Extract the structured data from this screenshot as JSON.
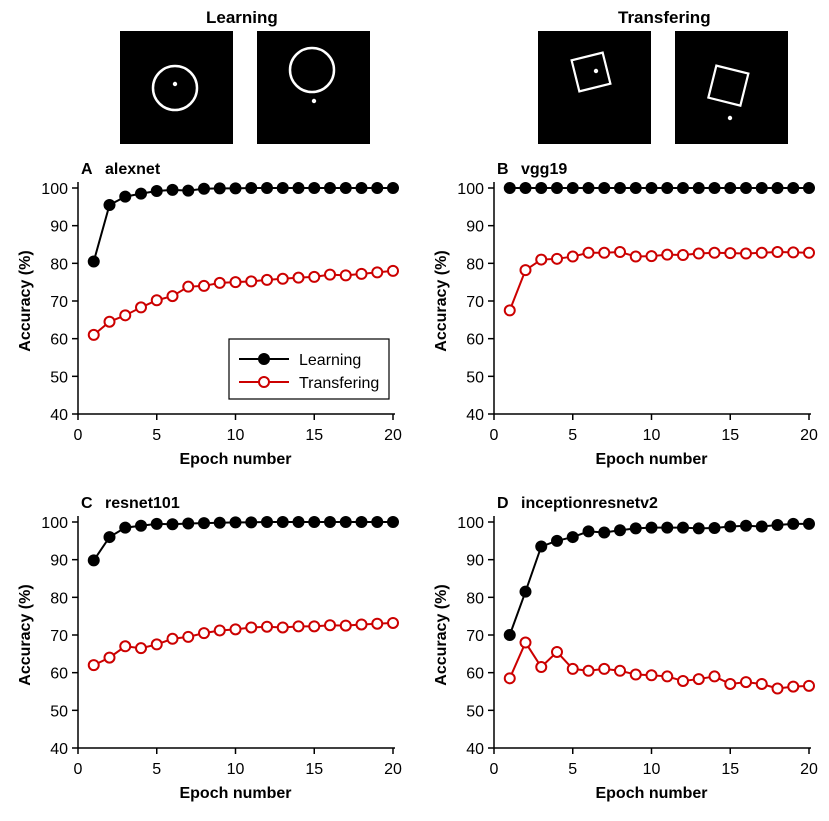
{
  "header": {
    "learning_label": "Learning",
    "transfer_label": "Transfering"
  },
  "stimuli": {
    "learning": [
      {
        "shape": "circle",
        "dot": "center"
      },
      {
        "shape": "circle",
        "dot": "outside-below"
      }
    ],
    "transfer": [
      {
        "shape": "square",
        "dot": "center"
      },
      {
        "shape": "square",
        "dot": "outside-below"
      }
    ]
  },
  "colors": {
    "learning": "#000000",
    "transfering": "#cc0000"
  },
  "legend": {
    "learning": "Learning",
    "transfering": "Transfering",
    "placement": "panel-A-bottom-right"
  },
  "chart_data": [
    {
      "type": "line",
      "panel": "A",
      "title": "alexnet",
      "xlabel": "Epoch number",
      "ylabel": "Accuracy (%)",
      "xlim": [
        0,
        20
      ],
      "ylim": [
        40,
        100
      ],
      "xticks": [
        0,
        5,
        10,
        15,
        20
      ],
      "yticks": [
        40,
        50,
        60,
        70,
        80,
        90,
        100
      ],
      "x": [
        1,
        2,
        3,
        4,
        5,
        6,
        7,
        8,
        9,
        10,
        11,
        12,
        13,
        14,
        15,
        16,
        17,
        18,
        19,
        20
      ],
      "series": [
        {
          "name": "Learning",
          "values": [
            80.5,
            95.5,
            97.7,
            98.5,
            99.2,
            99.5,
            99.3,
            99.8,
            99.9,
            99.9,
            100,
            100,
            100,
            100,
            100,
            100,
            100,
            100,
            100,
            100
          ]
        },
        {
          "name": "Transfering",
          "values": [
            61,
            64.5,
            66.2,
            68.3,
            70.2,
            71.3,
            73.8,
            74,
            74.8,
            75,
            75.2,
            75.6,
            75.9,
            76.2,
            76.4,
            77,
            76.8,
            77.2,
            77.6,
            78
          ]
        }
      ]
    },
    {
      "type": "line",
      "panel": "B",
      "title": "vgg19",
      "xlabel": "Epoch number",
      "ylabel": "Accuracy (%)",
      "xlim": [
        0,
        20
      ],
      "ylim": [
        40,
        100
      ],
      "xticks": [
        0,
        5,
        10,
        15,
        20
      ],
      "yticks": [
        40,
        50,
        60,
        70,
        80,
        90,
        100
      ],
      "x": [
        1,
        2,
        3,
        4,
        5,
        6,
        7,
        8,
        9,
        10,
        11,
        12,
        13,
        14,
        15,
        16,
        17,
        18,
        19,
        20
      ],
      "series": [
        {
          "name": "Learning",
          "values": [
            100,
            100,
            100,
            100,
            100,
            100,
            100,
            100,
            100,
            100,
            100,
            100,
            100,
            100,
            100,
            100,
            100,
            100,
            100,
            100
          ]
        },
        {
          "name": "Transfering",
          "values": [
            67.5,
            78.2,
            81,
            81.2,
            81.8,
            82.8,
            82.8,
            83,
            81.8,
            81.9,
            82.3,
            82.2,
            82.6,
            82.8,
            82.7,
            82.6,
            82.8,
            83,
            82.9,
            82.8
          ]
        }
      ]
    },
    {
      "type": "line",
      "panel": "C",
      "title": "resnet101",
      "xlabel": "Epoch number",
      "ylabel": "Accuracy (%)",
      "xlim": [
        0,
        20
      ],
      "ylim": [
        40,
        100
      ],
      "xticks": [
        0,
        5,
        10,
        15,
        20
      ],
      "yticks": [
        40,
        50,
        60,
        70,
        80,
        90,
        100
      ],
      "x": [
        1,
        2,
        3,
        4,
        5,
        6,
        7,
        8,
        9,
        10,
        11,
        12,
        13,
        14,
        15,
        16,
        17,
        18,
        19,
        20
      ],
      "series": [
        {
          "name": "Learning",
          "values": [
            89.8,
            96,
            98.5,
            99,
            99.5,
            99.4,
            99.6,
            99.7,
            99.8,
            99.9,
            99.9,
            100,
            100,
            100,
            100,
            100,
            100,
            100,
            100,
            100
          ]
        },
        {
          "name": "Transfering",
          "values": [
            62,
            64,
            67,
            66.5,
            67.5,
            69,
            69.5,
            70.5,
            71.2,
            71.5,
            72,
            72.2,
            72,
            72.3,
            72.3,
            72.6,
            72.5,
            72.8,
            73,
            73.2
          ]
        }
      ]
    },
    {
      "type": "line",
      "panel": "D",
      "title": "inceptionresnetv2",
      "xlabel": "Epoch number",
      "ylabel": "Accuracy (%)",
      "xlim": [
        0,
        20
      ],
      "ylim": [
        40,
        100
      ],
      "xticks": [
        0,
        5,
        10,
        15,
        20
      ],
      "yticks": [
        40,
        50,
        60,
        70,
        80,
        90,
        100
      ],
      "x": [
        1,
        2,
        3,
        4,
        5,
        6,
        7,
        8,
        9,
        10,
        11,
        12,
        13,
        14,
        15,
        16,
        17,
        18,
        19,
        20
      ],
      "series": [
        {
          "name": "Learning",
          "values": [
            70,
            81.5,
            93.5,
            95,
            96,
            97.5,
            97.2,
            97.8,
            98.3,
            98.5,
            98.5,
            98.5,
            98.3,
            98.4,
            98.8,
            99,
            98.8,
            99.2,
            99.5,
            99.5
          ]
        },
        {
          "name": "Transfering",
          "values": [
            58.5,
            68,
            61.5,
            65.5,
            61,
            60.5,
            61,
            60.5,
            59.5,
            59.3,
            59,
            57.8,
            58.3,
            59,
            57,
            57.5,
            57,
            55.8,
            56.3,
            56.5
          ]
        }
      ]
    }
  ]
}
